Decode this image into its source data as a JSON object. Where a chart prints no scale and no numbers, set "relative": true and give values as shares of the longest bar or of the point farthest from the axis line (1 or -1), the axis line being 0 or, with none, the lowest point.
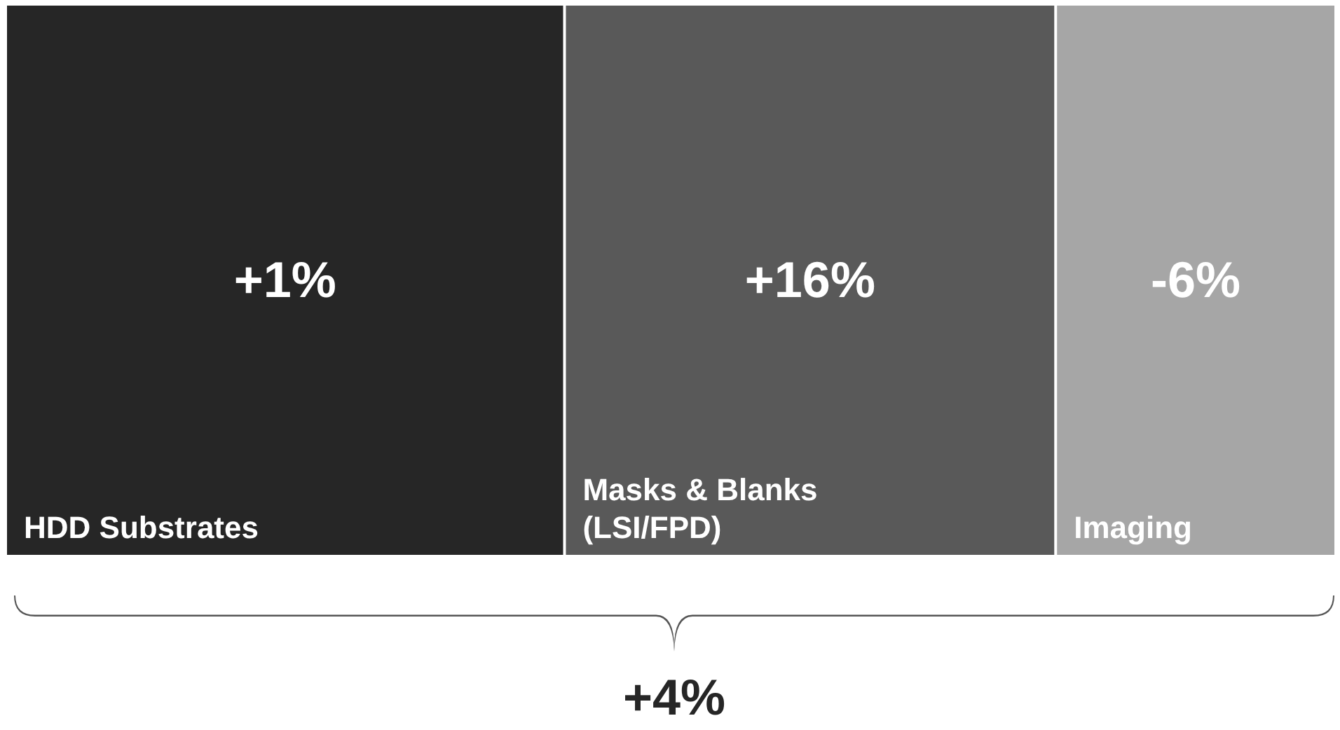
{
  "chart_data": {
    "type": "bar",
    "orientation": "horizontal",
    "stacked": true,
    "relative": true,
    "categories": [
      null
    ],
    "series": [
      {
        "name": "HDD Substrates",
        "color": "#262626",
        "values": [
          0.42
        ]
      },
      {
        "name": "Masks & Blanks (LSI/FPD)",
        "color": "#595959",
        "values": [
          0.37
        ]
      },
      {
        "name": "Imaging",
        "color": "#a6a6a6",
        "values": [
          0.21
        ]
      }
    ],
    "annotations": [
      "+1%",
      "+16%",
      "-6%",
      "+4%"
    ]
  }
}
